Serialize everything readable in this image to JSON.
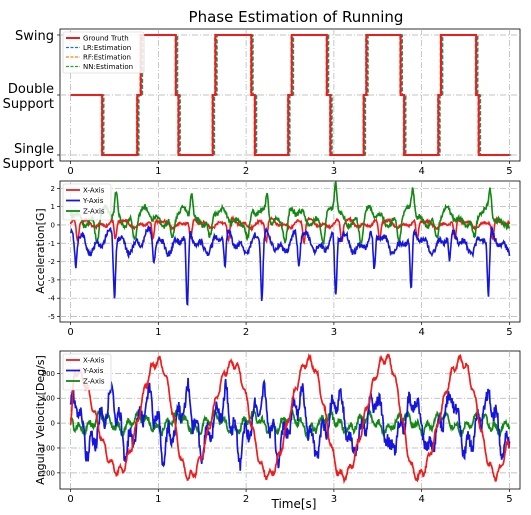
{
  "figure": {
    "title": "Phase Estimation of Running",
    "xlabel": "Time[s]"
  },
  "colors": {
    "red": "#ee1c1c",
    "blue": "#1515dd",
    "green": "#118811",
    "lr_blue": "#1f77b4",
    "rf_orange": "#ff7f0e",
    "nn_green": "#2ca02c",
    "grid": "#b0b0b0"
  },
  "chart_data": [
    {
      "type": "line",
      "title": "Phase Estimation of Running",
      "xlabel": "",
      "ylabel": "",
      "xlim": [
        -0.12,
        5.12
      ],
      "ylim": [
        -0.1,
        2.1
      ],
      "x_ticks": [
        0,
        1,
        2,
        3,
        4,
        5
      ],
      "y_ticks": [
        {
          "value": 2,
          "label": "Swing"
        },
        {
          "value": 1,
          "label": "Double\nSupport"
        },
        {
          "value": 0,
          "label": "Single\nSupport"
        }
      ],
      "grid": true,
      "legend_position": "top-left",
      "levels": {
        "swing": 2,
        "double_support": 1,
        "single_support": 0
      },
      "ground_truth_transitions": [
        {
          "t": 0.0,
          "level": 1
        },
        {
          "t": 0.36,
          "level": 0
        },
        {
          "t": 0.76,
          "level": 1
        },
        {
          "t": 0.8,
          "level": 2
        },
        {
          "t": 1.2,
          "level": 1
        },
        {
          "t": 1.23,
          "level": 0
        },
        {
          "t": 1.62,
          "level": 1
        },
        {
          "t": 1.65,
          "level": 2
        },
        {
          "t": 2.06,
          "level": 1
        },
        {
          "t": 2.1,
          "level": 0
        },
        {
          "t": 2.48,
          "level": 1
        },
        {
          "t": 2.52,
          "level": 2
        },
        {
          "t": 2.92,
          "level": 1
        },
        {
          "t": 2.96,
          "level": 0
        },
        {
          "t": 3.34,
          "level": 1
        },
        {
          "t": 3.37,
          "level": 2
        },
        {
          "t": 3.76,
          "level": 1
        },
        {
          "t": 3.8,
          "level": 0
        },
        {
          "t": 4.19,
          "level": 1
        },
        {
          "t": 4.22,
          "level": 2
        },
        {
          "t": 4.62,
          "level": 1
        },
        {
          "t": 4.65,
          "level": 0
        },
        {
          "t": 5.0,
          "level": 0
        }
      ],
      "series": [
        {
          "name": "Ground Truth",
          "color": "#ee1c1c",
          "style": "solid",
          "offset_s": 0.0
        },
        {
          "name": "LR:Estimation",
          "color": "#1f77b4",
          "style": "dashed",
          "offset_s": 0.012
        },
        {
          "name": "RF:Estimation",
          "color": "#ff7f0e",
          "style": "dashed",
          "offset_s": -0.008
        },
        {
          "name": "NN:Estimation",
          "color": "#2ca02c",
          "style": "dashed",
          "offset_s": 0.02
        }
      ]
    },
    {
      "type": "line",
      "title": "",
      "xlabel": "",
      "ylabel": "Acceleration[G]",
      "xlim": [
        -0.12,
        5.12
      ],
      "ylim": [
        -5.3,
        2.4
      ],
      "x_ticks": [
        0,
        1,
        2,
        3,
        4,
        5
      ],
      "y_ticks": [
        2,
        1,
        0,
        -1,
        -2,
        -3,
        -4,
        -5
      ],
      "grid": true,
      "legend_position": "top-left",
      "series": [
        {
          "name": "X-Axis",
          "color": "#ee1c1c",
          "base": 0.1,
          "amp": 0.35,
          "dips": [],
          "peaks": []
        },
        {
          "name": "Y-Axis",
          "color": "#1515dd",
          "base": -0.9,
          "amp": 0.9,
          "dips": [
            [
              0.06,
              -2.4
            ],
            [
              0.5,
              -4.1
            ],
            [
              0.95,
              -2.2
            ],
            [
              1.33,
              -5.1
            ],
            [
              1.76,
              -2.8
            ],
            [
              2.18,
              -4.3
            ],
            [
              2.6,
              -2.5
            ],
            [
              3.02,
              -4.4
            ],
            [
              3.46,
              -3.0
            ],
            [
              3.88,
              -4.1
            ],
            [
              4.32,
              -2.5
            ],
            [
              4.76,
              -4.4
            ]
          ],
          "peaks": []
        },
        {
          "name": "Z-Axis",
          "color": "#118811",
          "base": 0.45,
          "amp": 0.7,
          "dips": [],
          "peaks": [
            [
              0.52,
              1.8
            ],
            [
              1.38,
              2.0
            ],
            [
              2.24,
              1.9
            ],
            [
              3.02,
              2.2
            ],
            [
              3.9,
              1.9
            ],
            [
              4.78,
              1.8
            ]
          ]
        }
      ]
    },
    {
      "type": "line",
      "title": "",
      "xlabel": "Time[s]",
      "ylabel": "Angular Velocity[Deg/s]",
      "xlim": [
        -0.12,
        5.12
      ],
      "ylim": [
        -265,
        290
      ],
      "x_ticks": [
        0,
        1,
        2,
        3,
        4,
        5
      ],
      "y_ticks": [
        200,
        100,
        0,
        -100,
        -200
      ],
      "grid": true,
      "legend_position": "top-left",
      "series": [
        {
          "name": "X-Axis",
          "color": "#ee1c1c",
          "peaks": [
            [
              0.05,
              210
            ],
            [
              1.0,
              250
            ],
            [
              1.85,
              240
            ],
            [
              2.72,
              250
            ],
            [
              3.6,
              260
            ],
            [
              4.45,
              250
            ]
          ],
          "troughs": [
            [
              0.55,
              -195
            ],
            [
              1.35,
              -215
            ],
            [
              2.25,
              -210
            ],
            [
              3.1,
              -215
            ],
            [
              3.95,
              -215
            ],
            [
              4.85,
              -210
            ]
          ]
        },
        {
          "name": "Y-Axis",
          "color": "#1515dd",
          "amp": 110,
          "period": 0.43
        },
        {
          "name": "Z-Axis",
          "color": "#118811",
          "amp": 45,
          "period": 0.43
        }
      ]
    }
  ]
}
